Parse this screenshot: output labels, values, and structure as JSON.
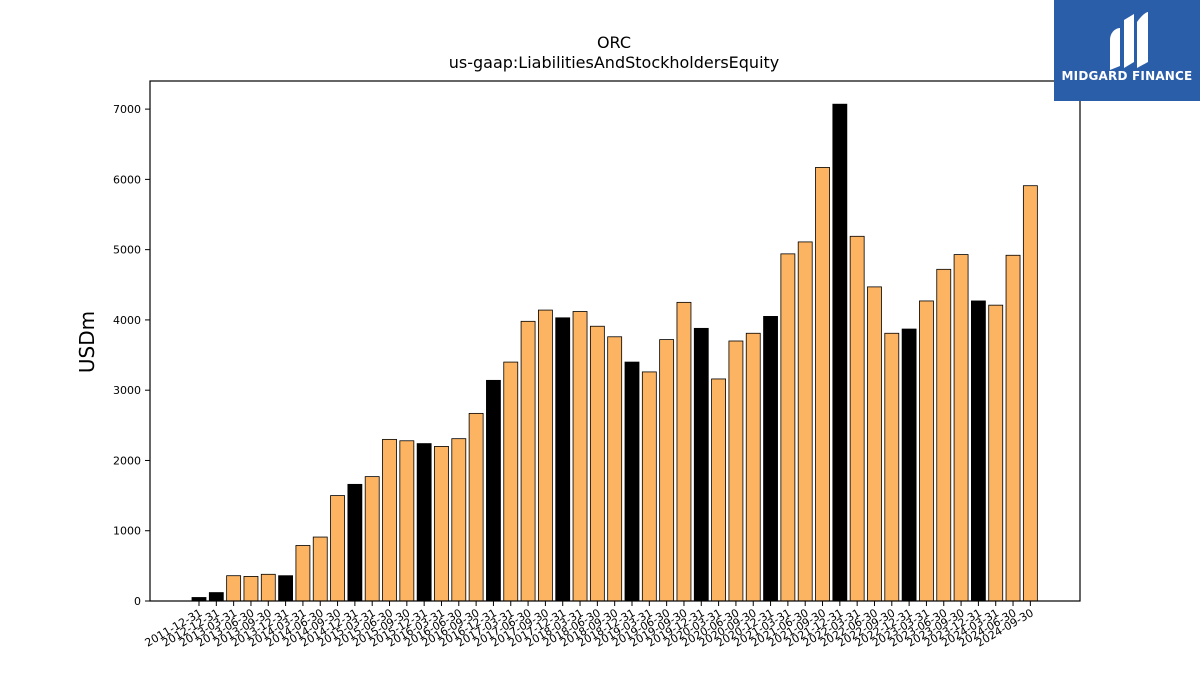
{
  "chart_data": {
    "type": "bar",
    "title": "ORC",
    "subtitle": "us-gaap:LiabilitiesAndStockholdersEquity",
    "xlabel": "",
    "ylabel": "USDm",
    "ylim": [
      0,
      7400
    ],
    "yticks": [
      0,
      1000,
      2000,
      3000,
      4000,
      5000,
      6000,
      7000
    ],
    "grid": false,
    "categories": [
      "2011-12-31",
      "2012-12-31",
      "2013-03-31",
      "2013-06-30",
      "2013-09-30",
      "2013-12-31",
      "2014-03-31",
      "2014-06-30",
      "2014-09-30",
      "2014-12-31",
      "2015-03-31",
      "2015-06-30",
      "2015-09-30",
      "2015-12-31",
      "2016-03-31",
      "2016-06-30",
      "2016-09-30",
      "2016-12-31",
      "2017-03-31",
      "2017-06-30",
      "2017-09-30",
      "2017-12-31",
      "2018-03-31",
      "2018-06-30",
      "2018-09-30",
      "2018-12-31",
      "2019-03-31",
      "2019-06-30",
      "2019-09-30",
      "2019-12-31",
      "2020-03-31",
      "2020-06-30",
      "2020-09-30",
      "2020-12-31",
      "2021-03-31",
      "2021-06-30",
      "2021-09-30",
      "2021-12-31",
      "2022-03-31",
      "2022-06-30",
      "2022-09-30",
      "2022-12-31",
      "2023-03-31",
      "2023-06-30",
      "2023-09-30",
      "2023-12-31",
      "2024-03-31",
      "2024-06-30",
      "2024-09-30"
    ],
    "values": [
      50,
      120,
      360,
      350,
      380,
      360,
      790,
      910,
      1500,
      1660,
      1770,
      2300,
      2280,
      2240,
      2200,
      2310,
      2670,
      3140,
      3400,
      3980,
      4140,
      4030,
      4120,
      3910,
      3760,
      3400,
      3260,
      3720,
      4250,
      3880,
      3160,
      3700,
      3810,
      4050,
      4940,
      5110,
      6170,
      7070,
      5190,
      4470,
      3810,
      3870,
      4270,
      4720,
      4930,
      4270,
      4210,
      4920,
      5910
    ],
    "highlight_quarter_end": "12-31",
    "colors": {
      "default": "#fdb462",
      "year_end": "#000000",
      "edge": "#000000"
    }
  },
  "logo": {
    "text": "MIDGARD FINANCE",
    "background": "#2b5ea9"
  }
}
